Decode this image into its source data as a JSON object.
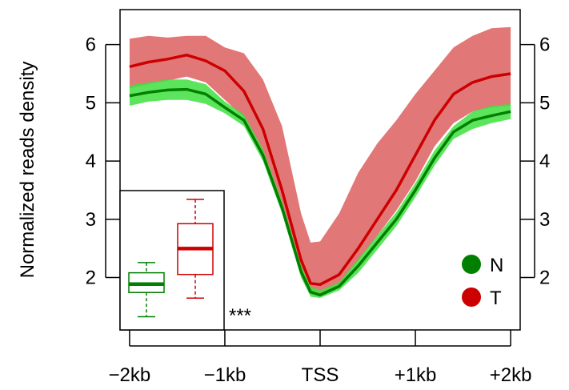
{
  "chart_data": {
    "type": "line",
    "title": "",
    "ylabel": "Normalized reads density",
    "xlabel": "",
    "ylim": [
      1.1,
      6.6
    ],
    "xlim": [
      -2100,
      2100
    ],
    "x_ticks": [
      {
        "value": -2000,
        "label": "−2kb"
      },
      {
        "value": -1000,
        "label": "−1kb"
      },
      {
        "value": 0,
        "label": "TSS"
      },
      {
        "value": 1000,
        "label": "+1kb"
      },
      {
        "value": 2000,
        "label": "+2kb"
      }
    ],
    "y_ticks": [
      2,
      3,
      4,
      5,
      6
    ],
    "x": [
      -2000,
      -1800,
      -1600,
      -1400,
      -1200,
      -1000,
      -800,
      -600,
      -400,
      -200,
      -100,
      0,
      200,
      400,
      600,
      800,
      1000,
      1200,
      1400,
      1600,
      1800,
      2000
    ],
    "series": [
      {
        "name": "N",
        "color": "#008000",
        "band_color": "#40e040",
        "values": [
          5.12,
          5.18,
          5.22,
          5.23,
          5.15,
          4.92,
          4.7,
          4.1,
          3.2,
          2.1,
          1.75,
          1.7,
          1.85,
          2.2,
          2.6,
          3.0,
          3.5,
          4.05,
          4.5,
          4.7,
          4.78,
          4.85
        ],
        "lower": [
          4.95,
          5.02,
          5.05,
          5.05,
          4.98,
          4.82,
          4.6,
          4.0,
          3.1,
          2.0,
          1.67,
          1.65,
          1.78,
          2.08,
          2.48,
          2.88,
          3.38,
          3.92,
          4.38,
          4.55,
          4.65,
          4.72
        ],
        "upper": [
          5.3,
          5.35,
          5.4,
          5.4,
          5.32,
          5.02,
          4.8,
          4.2,
          3.3,
          2.2,
          1.85,
          1.78,
          1.92,
          2.32,
          2.72,
          3.12,
          3.62,
          4.18,
          4.6,
          4.85,
          4.95,
          4.98
        ]
      },
      {
        "name": "T",
        "color": "#cc0000",
        "band_color": "#e07070",
        "values": [
          5.62,
          5.7,
          5.75,
          5.82,
          5.72,
          5.55,
          5.2,
          4.55,
          3.5,
          2.3,
          1.9,
          1.88,
          2.05,
          2.5,
          3.0,
          3.5,
          4.1,
          4.7,
          5.15,
          5.35,
          5.45,
          5.5
        ],
        "lower": [
          5.25,
          5.32,
          5.38,
          5.45,
          5.35,
          5.05,
          4.75,
          4.15,
          3.2,
          2.05,
          1.72,
          1.72,
          1.88,
          2.28,
          2.72,
          3.15,
          3.65,
          4.25,
          4.65,
          4.85,
          4.92,
          4.95
        ],
        "upper": [
          6.1,
          6.15,
          6.12,
          6.15,
          6.15,
          5.95,
          5.85,
          5.4,
          4.6,
          3.1,
          2.6,
          2.62,
          3.1,
          3.8,
          4.3,
          4.7,
          5.15,
          5.55,
          5.95,
          6.15,
          6.28,
          6.3
        ]
      }
    ],
    "legend": {
      "position": "bottom-right",
      "entries": [
        {
          "label": "N",
          "color": "#008000"
        },
        {
          "label": "T",
          "color": "#cc0000"
        }
      ]
    },
    "inset_boxplot": {
      "position": "bottom-left",
      "groups": [
        {
          "name": "N",
          "color": "#008000",
          "min": 1.42,
          "q1": 1.85,
          "median": 2.0,
          "q3": 2.2,
          "max": 2.38
        },
        {
          "name": "T",
          "color": "#cc0000",
          "min": 1.75,
          "q1": 2.17,
          "median": 2.63,
          "q3": 3.07,
          "max": 3.5
        }
      ],
      "annotation": "***"
    },
    "grid": false
  }
}
